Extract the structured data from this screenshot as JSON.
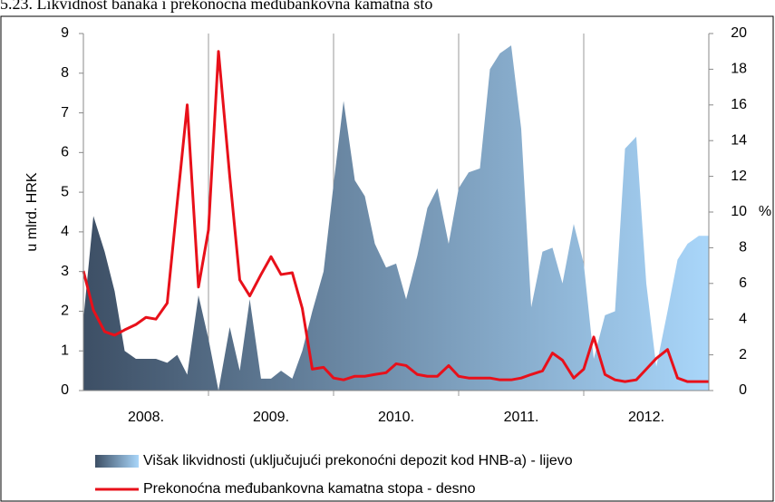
{
  "chart_data": {
    "type": "area",
    "title": "5.23. Likvidnost banaka i prekonoćna međubankovna kamatna sto",
    "y_label": "u mlrd. HRK",
    "y2_label": "%",
    "xlim": [
      2008,
      2013
    ],
    "xticks": [
      {
        "value": 2008.5,
        "label": "2008."
      },
      {
        "value": 2009.5,
        "label": "2009."
      },
      {
        "value": 2010.5,
        "label": "2010."
      },
      {
        "value": 2011.5,
        "label": "2011."
      },
      {
        "value": 2012.5,
        "label": "2012."
      }
    ],
    "x_grid": [
      2009,
      2010,
      2011,
      2012
    ],
    "ylim": [
      0,
      9
    ],
    "yticks": [
      0,
      1,
      2,
      3,
      4,
      5,
      6,
      7,
      8,
      9
    ],
    "y2lim": [
      0,
      20
    ],
    "y2ticks": [
      0,
      2,
      4,
      6,
      8,
      10,
      12,
      14,
      16,
      18,
      20
    ],
    "x": [
      2008,
      2008.08,
      2008.17,
      2008.25,
      2008.33,
      2008.42,
      2008.5,
      2008.58,
      2008.67,
      2008.75,
      2008.83,
      2008.92,
      2009,
      2009.08,
      2009.17,
      2009.25,
      2009.33,
      2009.42,
      2009.5,
      2009.58,
      2009.67,
      2009.75,
      2009.83,
      2009.92,
      2010,
      2010.08,
      2010.17,
      2010.25,
      2010.33,
      2010.42,
      2010.5,
      2010.58,
      2010.67,
      2010.75,
      2010.83,
      2010.92,
      2011,
      2011.08,
      2011.17,
      2011.25,
      2011.33,
      2011.42,
      2011.5,
      2011.58,
      2011.67,
      2011.75,
      2011.83,
      2011.92,
      2012,
      2012.08,
      2012.17,
      2012.25,
      2012.33,
      2012.42,
      2012.5,
      2012.58,
      2012.67,
      2012.75,
      2012.83,
      2012.92,
      2013
    ],
    "series": [
      {
        "name": "Višak likvidnosti (uključujući prekonoćni depozit kod HNB-a) - lijevo",
        "type": "area",
        "colors": [
          "#3d4f65",
          "#a9d6fa"
        ],
        "values": [
          1.8,
          4.4,
          3.5,
          2.5,
          1.0,
          0.8,
          0.8,
          0.8,
          0.7,
          0.9,
          0.4,
          2.4,
          1.3,
          0.0,
          1.6,
          0.5,
          2.3,
          0.3,
          0.3,
          0.5,
          0.3,
          1.0,
          2.0,
          3.0,
          5.2,
          7.3,
          5.3,
          4.9,
          3.7,
          3.1,
          3.2,
          2.3,
          3.4,
          4.6,
          5.1,
          3.7,
          5.1,
          5.5,
          5.6,
          8.1,
          8.5,
          8.7,
          6.6,
          2.1,
          3.5,
          3.6,
          2.7,
          4.2,
          3.2,
          0.8,
          1.9,
          2.0,
          6.1,
          6.4,
          2.7,
          0.6,
          2.0,
          3.3,
          3.7,
          3.9,
          3.9
        ]
      },
      {
        "name": "Prekonoćna međubankovna kamatna stopa - desno",
        "type": "line",
        "color": "#e8101a",
        "axis": "y2",
        "values": [
          6.7,
          4.5,
          3.3,
          3.1,
          3.4,
          3.7,
          4.1,
          4.0,
          4.9,
          10.5,
          16.0,
          5.8,
          9.0,
          19.0,
          12.0,
          6.2,
          5.3,
          6.5,
          7.5,
          6.5,
          6.6,
          4.6,
          1.2,
          1.3,
          0.7,
          0.6,
          0.8,
          0.8,
          0.9,
          1.0,
          1.5,
          1.4,
          0.9,
          0.8,
          0.8,
          1.4,
          0.8,
          0.7,
          0.7,
          0.7,
          0.6,
          0.6,
          0.7,
          0.9,
          1.1,
          2.1,
          1.7,
          0.7,
          1.2,
          3.0,
          0.9,
          0.6,
          0.5,
          0.6,
          1.2,
          1.8,
          2.3,
          0.7,
          0.5,
          0.5,
          0.5
        ]
      }
    ]
  }
}
